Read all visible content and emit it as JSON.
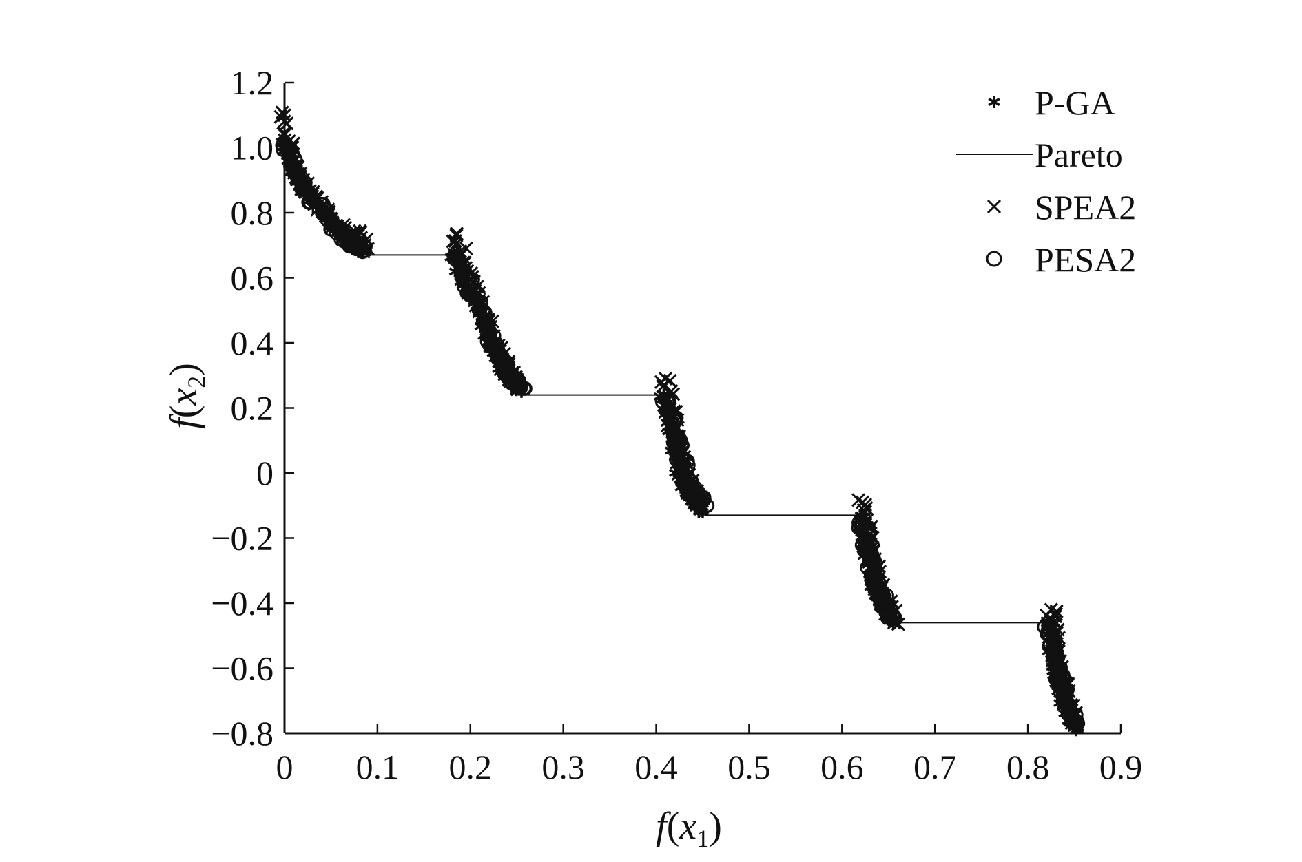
{
  "chart_data": {
    "type": "scatter",
    "xlabel": {
      "func": "f",
      "open": "(",
      "var": "x",
      "sub": "1",
      "close": ")"
    },
    "ylabel": {
      "func": "f",
      "open": "(",
      "var": "x",
      "sub": "2",
      "close": ")"
    },
    "xlim": [
      0,
      0.9
    ],
    "ylim": [
      -0.8,
      1.2
    ],
    "x_ticks": [
      0,
      0.1,
      0.2,
      0.3,
      0.4,
      0.5,
      0.6,
      0.7,
      0.8,
      0.9
    ],
    "x_tick_labels": [
      "0",
      "0.1",
      "0.2",
      "0.3",
      "0.4",
      "0.5",
      "0.6",
      "0.7",
      "0.8",
      "0.9"
    ],
    "y_ticks": [
      1.2,
      1.0,
      0.8,
      0.6,
      0.4,
      0.2,
      0,
      -0.2,
      -0.4,
      -0.6,
      -0.8
    ],
    "y_tick_labels": [
      "1.2",
      "1.0",
      "0.8",
      "0.6",
      "0.4",
      "0.2",
      "0",
      "−0.2",
      "−0.4",
      "−0.6",
      "−0.8"
    ],
    "grid": false,
    "legend_position": "top-right",
    "colors": {
      "ink": "#111111"
    },
    "series": [
      {
        "name": "P-GA",
        "marker": "asterisk",
        "segments": [
          {
            "x": [
              0.0,
              0.01,
              0.02,
              0.04,
              0.06,
              0.08,
              0.085
            ],
            "y": [
              1.02,
              0.94,
              0.88,
              0.8,
              0.74,
              0.7,
              0.68
            ]
          },
          {
            "x": [
              0.182,
              0.19,
              0.2,
              0.21,
              0.22,
              0.23,
              0.24,
              0.255
            ],
            "y": [
              0.67,
              0.62,
              0.56,
              0.49,
              0.42,
              0.35,
              0.3,
              0.25
            ]
          },
          {
            "x": [
              0.408,
              0.415,
              0.42,
              0.425,
              0.43,
              0.44,
              0.45
            ],
            "y": [
              0.24,
              0.16,
              0.08,
              0.01,
              -0.04,
              -0.08,
              -0.12
            ]
          },
          {
            "x": [
              0.62,
              0.625,
              0.63,
              0.635,
              0.64,
              0.648,
              0.655
            ],
            "y": [
              -0.13,
              -0.2,
              -0.27,
              -0.33,
              -0.38,
              -0.42,
              -0.46
            ]
          },
          {
            "x": [
              0.822,
              0.826,
              0.83,
              0.834,
              0.838,
              0.845,
              0.852
            ],
            "y": [
              -0.46,
              -0.53,
              -0.59,
              -0.65,
              -0.7,
              -0.74,
              -0.79
            ]
          }
        ]
      },
      {
        "name": "Pareto",
        "marker": "line",
        "segments": [
          {
            "x": [
              0.0,
              0.02,
              0.04,
              0.06,
              0.083
            ],
            "y": [
              1.0,
              0.9,
              0.81,
              0.74,
              0.67
            ]
          },
          {
            "x": [
              0.083,
              0.182
            ],
            "y": [
              0.67,
              0.67
            ]
          },
          {
            "x": [
              0.182,
              0.2,
              0.22,
              0.24,
              0.257
            ],
            "y": [
              0.67,
              0.55,
              0.42,
              0.31,
              0.24
            ]
          },
          {
            "x": [
              0.257,
              0.408
            ],
            "y": [
              0.24,
              0.24
            ]
          },
          {
            "x": [
              0.408,
              0.42,
              0.43,
              0.44,
              0.452
            ],
            "y": [
              0.24,
              0.1,
              -0.02,
              -0.09,
              -0.13
            ]
          },
          {
            "x": [
              0.452,
              0.618
            ],
            "y": [
              -0.13,
              -0.13
            ]
          },
          {
            "x": [
              0.618,
              0.63,
              0.64,
              0.652
            ],
            "y": [
              -0.13,
              -0.27,
              -0.38,
              -0.46
            ]
          },
          {
            "x": [
              0.652,
              0.822
            ],
            "y": [
              -0.46,
              -0.46
            ]
          },
          {
            "x": [
              0.822,
              0.83,
              0.84,
              0.852
            ],
            "y": [
              -0.46,
              -0.59,
              -0.71,
              -0.79
            ]
          }
        ]
      },
      {
        "name": "SPEA2",
        "marker": "x",
        "segments": [
          {
            "x": [
              0.0,
              0.005,
              0.015,
              0.03,
              0.05,
              0.07,
              0.082,
              0.085
            ],
            "y": [
              1.1,
              0.98,
              0.92,
              0.85,
              0.78,
              0.72,
              0.74,
              0.68
            ]
          },
          {
            "x": [
              0.185,
              0.195,
              0.205,
              0.215,
              0.225,
              0.235,
              0.245,
              0.25
            ],
            "y": [
              0.73,
              0.63,
              0.56,
              0.48,
              0.4,
              0.34,
              0.3,
              0.26
            ]
          },
          {
            "x": [
              0.41,
              0.416,
              0.422,
              0.428,
              0.435,
              0.44,
              0.448
            ],
            "y": [
              0.29,
              0.18,
              0.09,
              0.02,
              -0.04,
              -0.07,
              -0.11
            ]
          },
          {
            "x": [
              0.622,
              0.627,
              0.632,
              0.637,
              0.643,
              0.65,
              0.656
            ],
            "y": [
              -0.09,
              -0.18,
              -0.26,
              -0.32,
              -0.37,
              -0.41,
              -0.46
            ]
          },
          {
            "x": [
              0.825,
              0.828,
              0.832,
              0.836,
              0.841,
              0.847,
              0.853
            ],
            "y": [
              -0.42,
              -0.51,
              -0.58,
              -0.64,
              -0.69,
              -0.73,
              -0.78
            ]
          }
        ]
      },
      {
        "name": "PESA2",
        "marker": "circle",
        "segments": [
          {
            "x": [
              0.002,
              0.012,
              0.03,
              0.05,
              0.07,
              0.084
            ],
            "y": [
              1.0,
              0.92,
              0.84,
              0.77,
              0.71,
              0.68
            ]
          },
          {
            "x": [
              0.188,
              0.2,
              0.215,
              0.23,
              0.245,
              0.258
            ],
            "y": [
              0.65,
              0.57,
              0.46,
              0.36,
              0.29,
              0.26
            ]
          },
          {
            "x": [
              0.412,
              0.42,
              0.428,
              0.438,
              0.455
            ],
            "y": [
              0.22,
              0.12,
              0.03,
              -0.05,
              -0.1
            ]
          },
          {
            "x": [
              0.621,
              0.628,
              0.636,
              0.645,
              0.653
            ],
            "y": [
              -0.15,
              -0.24,
              -0.33,
              -0.4,
              -0.45
            ]
          },
          {
            "x": [
              0.823,
              0.829,
              0.836,
              0.844,
              0.851
            ],
            "y": [
              -0.48,
              -0.56,
              -0.64,
              -0.71,
              -0.77
            ]
          }
        ]
      }
    ]
  }
}
